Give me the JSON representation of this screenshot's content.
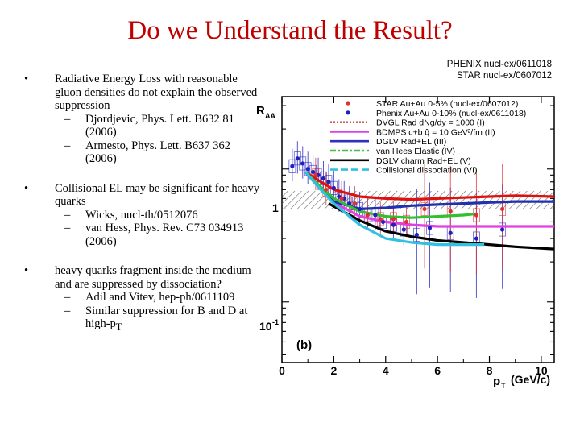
{
  "slide": {
    "title": "Do we Understand the Result?",
    "refs": [
      "PHENIX nucl-ex/0611018",
      "STAR nucl-ex/0607012"
    ],
    "bullets": [
      {
        "marker": "•",
        "text": "Radiative Energy Loss with reasonable gluon densities do not explain the observed suppression",
        "subs": [
          "Djordjevic, Phys. Lett. B632 81 (2006)",
          "Armesto, Phys. Lett. B637 362 (2006)"
        ]
      },
      {
        "marker": "•",
        "text": "Collisional EL may be significant for heavy quarks",
        "subs": [
          "Wicks, nucl-th/0512076",
          "van Hess, Phys. Rev. C73 034913 (2006)"
        ]
      },
      {
        "marker": "•",
        "text": "heavy quarks fragment inside the medium and are suppressed by dissociation?",
        "subs": [
          "Adil and Vitev, hep-ph/0611109",
          "Similar suppression for B and D at high-p"
        ]
      }
    ],
    "dash": "–",
    "last_sub_t": "T"
  },
  "chart_data": {
    "type": "line",
    "ylabel": "R",
    "ylabel_sub": "AA",
    "xlabel": "p",
    "xlabel_sub": "T",
    "xlabel_unit": "(GeV/c)",
    "panel_label": "(b)",
    "y_scale": "log",
    "xlim": [
      0,
      10.5
    ],
    "ylim": [
      0.035,
      3.5
    ],
    "x_ticks": [
      "0",
      "2",
      "4",
      "6",
      "8",
      "10"
    ],
    "y_tick_1": "1",
    "y_tick_01_base": "10",
    "y_tick_01_exp": "-1",
    "legend_position": "top-right",
    "legend": [
      {
        "label": "STAR Au+Au 0-5% (nucl-ex/0607012)",
        "color": "#e03030",
        "style": "marker"
      },
      {
        "label": "Phenix Au+Au  0-10% (nucl-ex/0611018)",
        "color": "#2020c0",
        "style": "marker"
      },
      {
        "label": "DVGL Rad dNg/dy = 1000 (I)",
        "color": "#b00000",
        "style": "dotted"
      },
      {
        "label": "BDMPS c+b q̂ = 10 GeV²/fm (II)",
        "color": "#e040e0",
        "style": "solid"
      },
      {
        "label": "DGLV Rad+EL (III)",
        "color": "#3030c0",
        "style": "solid"
      },
      {
        "label": "van Hees Elastic (IV)",
        "color": "#40c040",
        "style": "dashdot"
      },
      {
        "label": "DGLV charm Rad+EL (V)",
        "color": "#000000",
        "style": "solid"
      },
      {
        "label": "Collisional dissociation (VI)",
        "color": "#30c0e0",
        "style": "dashed"
      }
    ],
    "series": [
      {
        "name": "DVGL Rad dNg/dy = 1000 (I)",
        "color": "#e01010",
        "x": [
          0.9,
          1.5,
          2,
          3,
          4,
          5,
          6,
          7,
          8,
          9,
          10.5
        ],
        "y": [
          0.95,
          0.8,
          0.7,
          0.62,
          0.6,
          0.59,
          0.6,
          0.61,
          0.62,
          0.63,
          0.62
        ]
      },
      {
        "name": "BDMPS c+b q̂ = 10 GeV²/fm (II)",
        "color": "#e040e0",
        "x": [
          0.9,
          1.5,
          2,
          3,
          4,
          5,
          6,
          7,
          8,
          9,
          10.5
        ],
        "y": [
          0.95,
          0.7,
          0.56,
          0.44,
          0.4,
          0.38,
          0.37,
          0.37,
          0.37,
          0.37,
          0.37
        ]
      },
      {
        "name": "DGLV Rad+EL (III)",
        "color": "#2030b0",
        "x": [
          0.9,
          1.5,
          2,
          3,
          4,
          5,
          6,
          7,
          8,
          9,
          10.5
        ],
        "y": [
          0.95,
          0.7,
          0.57,
          0.5,
          0.51,
          0.53,
          0.54,
          0.55,
          0.56,
          0.57,
          0.57
        ]
      },
      {
        "name": "van Hees Elastic (IV)",
        "color": "#30c030",
        "x": [
          0.9,
          1.5,
          2,
          3,
          4,
          5,
          6,
          7,
          7.5
        ],
        "y": [
          0.95,
          0.73,
          0.6,
          0.48,
          0.44,
          0.43,
          0.44,
          0.45,
          0.46
        ]
      },
      {
        "name": "DGLV charm Rad+EL (V)",
        "color": "#000000",
        "x": [
          1.8,
          3,
          4,
          5,
          6,
          7,
          8,
          9,
          10.5
        ],
        "y": [
          0.55,
          0.41,
          0.34,
          0.31,
          0.29,
          0.28,
          0.27,
          0.26,
          0.25
        ]
      },
      {
        "name": "Collisional dissociation (VI)",
        "color": "#30c0e0",
        "x": [
          0.9,
          1.5,
          2,
          3,
          4,
          5,
          6,
          7,
          7.8
        ],
        "y": [
          0.95,
          0.7,
          0.55,
          0.38,
          0.3,
          0.28,
          0.27,
          0.27,
          0.27
        ]
      }
    ],
    "points": [
      {
        "name": "Phenix Au+Au  0-10% (nucl-ex/0611018)",
        "color": "#2020c0",
        "x": [
          0.4,
          0.6,
          0.8,
          1.0,
          1.2,
          1.4,
          1.6,
          1.8,
          2.0,
          2.2,
          2.4,
          2.6,
          2.8,
          3.0,
          3.3,
          3.6,
          3.9,
          4.3,
          4.7,
          5.2,
          5.7,
          6.5,
          7.5,
          8.5
        ],
        "y": [
          1.05,
          1.2,
          1.1,
          1.0,
          0.95,
          0.9,
          0.85,
          0.8,
          0.72,
          0.62,
          0.6,
          0.55,
          0.55,
          0.5,
          0.45,
          0.45,
          0.4,
          0.38,
          0.35,
          0.32,
          0.36,
          0.33,
          0.3,
          0.35
        ]
      },
      {
        "name": "STAR Au+Au 0-5% (nucl-ex/0607012)",
        "color": "#e03030",
        "x": [
          1.3,
          1.7,
          2.3,
          2.8,
          3.3,
          3.8,
          4.3,
          4.8,
          5.5,
          6.5,
          7.5,
          8.5
        ],
        "y": [
          0.9,
          0.7,
          0.6,
          0.55,
          0.45,
          0.42,
          0.42,
          0.4,
          0.5,
          0.48,
          0.45,
          0.5
        ]
      }
    ]
  }
}
